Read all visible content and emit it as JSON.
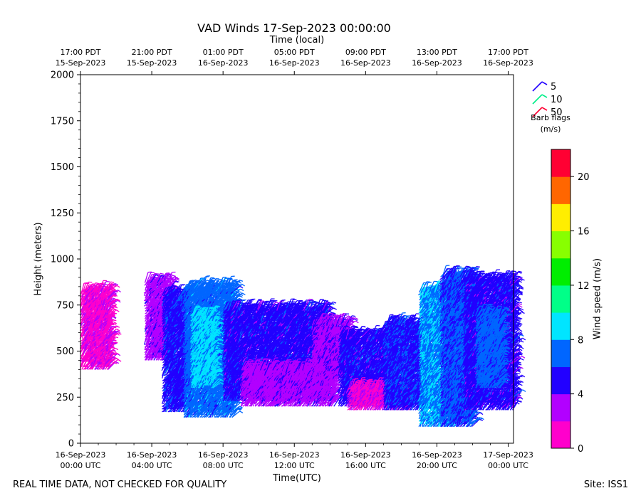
{
  "chart_data": {
    "type": "barb",
    "title": "VAD Winds 17-Sep-2023 00:00:00",
    "xlabel": "Time(UTC)",
    "top_xlabel": "Time (local)",
    "ylabel": "Height (meters)",
    "ylim": [
      0,
      2000
    ],
    "yticks": [
      "0",
      "250",
      "500",
      "750",
      "1000",
      "1250",
      "1500",
      "1750",
      "2000"
    ],
    "ytick_values": [
      0,
      250,
      500,
      750,
      1000,
      1250,
      1500,
      1750,
      2000
    ],
    "xlim_hours": [
      0,
      24.3
    ],
    "bottom_ticks": [
      {
        "hour": 0,
        "line1": "16-Sep-2023",
        "line2": "00:00 UTC"
      },
      {
        "hour": 4,
        "line1": "16-Sep-2023",
        "line2": "04:00 UTC"
      },
      {
        "hour": 8,
        "line1": "16-Sep-2023",
        "line2": "08:00 UTC"
      },
      {
        "hour": 12,
        "line1": "16-Sep-2023",
        "line2": "12:00 UTC"
      },
      {
        "hour": 16,
        "line1": "16-Sep-2023",
        "line2": "16:00 UTC"
      },
      {
        "hour": 20,
        "line1": "16-Sep-2023",
        "line2": "20:00 UTC"
      },
      {
        "hour": 24,
        "line1": "17-Sep-2023",
        "line2": "00:00 UTC"
      }
    ],
    "top_ticks": [
      {
        "hour": 0,
        "line1": "17:00 PDT",
        "line2": "15-Sep-2023"
      },
      {
        "hour": 4,
        "line1": "21:00 PDT",
        "line2": "15-Sep-2023"
      },
      {
        "hour": 8,
        "line1": "01:00 PDT",
        "line2": "16-Sep-2023"
      },
      {
        "hour": 12,
        "line1": "05:00 PDT",
        "line2": "16-Sep-2023"
      },
      {
        "hour": 16,
        "line1": "09:00 PDT",
        "line2": "16-Sep-2023"
      },
      {
        "hour": 20,
        "line1": "13:00 PDT",
        "line2": "16-Sep-2023"
      },
      {
        "hour": 24,
        "line1": "17:00 PDT",
        "line2": "16-Sep-2023"
      }
    ],
    "colorbar": {
      "label": "Wind speed (m/s)",
      "min": 0,
      "max": 22,
      "step": 2,
      "ticks": [
        "0",
        "4",
        "8",
        "12",
        "16",
        "20"
      ],
      "tick_values": [
        0,
        4,
        8,
        12,
        16,
        20
      ],
      "colors": [
        "#ff00cc",
        "#b200ff",
        "#2200ff",
        "#0066ff",
        "#00e5ff",
        "#00ff88",
        "#00ee00",
        "#88ff00",
        "#ffee00",
        "#ff6600",
        "#ff0033"
      ]
    },
    "barb_legend": {
      "title_line1": "Barb flags",
      "title_line2": "(m/s)",
      "entries": [
        {
          "label": "5",
          "color": "#2200ff"
        },
        {
          "label": "10",
          "color": "#00ee88"
        },
        {
          "label": "50",
          "color": "#ff0033"
        }
      ]
    },
    "data_segments": [
      {
        "hour_start": 0.0,
        "hour_end": 1.6,
        "base_m": 400,
        "top_m": 830,
        "speed_ms": 1.5
      },
      {
        "hour_start": 3.6,
        "hour_end": 5.0,
        "base_m": 450,
        "top_m": 880,
        "speed_ms": 3.2
      },
      {
        "hour_start": 4.6,
        "hour_end": 6.0,
        "base_m": 170,
        "top_m": 800,
        "speed_ms": 5.2
      },
      {
        "hour_start": 5.8,
        "hour_end": 8.6,
        "base_m": 140,
        "top_m": 840,
        "speed_ms": 7.0
      },
      {
        "hour_start": 6.2,
        "hour_end": 7.4,
        "base_m": 300,
        "top_m": 700,
        "speed_ms": 8.6
      },
      {
        "hour_start": 8.0,
        "hour_end": 13.8,
        "base_m": 230,
        "top_m": 730,
        "speed_ms": 5.0
      },
      {
        "hour_start": 9.0,
        "hour_end": 14.2,
        "base_m": 200,
        "top_m": 400,
        "speed_ms": 3.2
      },
      {
        "hour_start": 13.0,
        "hour_end": 15.0,
        "base_m": 350,
        "top_m": 650,
        "speed_ms": 3.4
      },
      {
        "hour_start": 14.5,
        "hour_end": 17.5,
        "base_m": 200,
        "top_m": 580,
        "speed_ms": 5.0
      },
      {
        "hour_start": 15.0,
        "hour_end": 18.5,
        "base_m": 180,
        "top_m": 300,
        "speed_ms": 1.8
      },
      {
        "hour_start": 17.0,
        "hour_end": 19.2,
        "base_m": 180,
        "top_m": 650,
        "speed_ms": 5.5
      },
      {
        "hour_start": 19.0,
        "hour_end": 21.0,
        "base_m": 90,
        "top_m": 820,
        "speed_ms": 7.8
      },
      {
        "hour_start": 20.2,
        "hour_end": 22.0,
        "base_m": 90,
        "top_m": 910,
        "speed_ms": 6.2
      },
      {
        "hour_start": 21.5,
        "hour_end": 24.3,
        "base_m": 180,
        "top_m": 880,
        "speed_ms": 5.0
      },
      {
        "hour_start": 22.2,
        "hour_end": 23.6,
        "base_m": 300,
        "top_m": 700,
        "speed_ms": 6.8
      }
    ]
  },
  "footer": {
    "note": "REAL TIME DATA, NOT CHECKED FOR QUALITY",
    "site": "Site: ISS1"
  }
}
